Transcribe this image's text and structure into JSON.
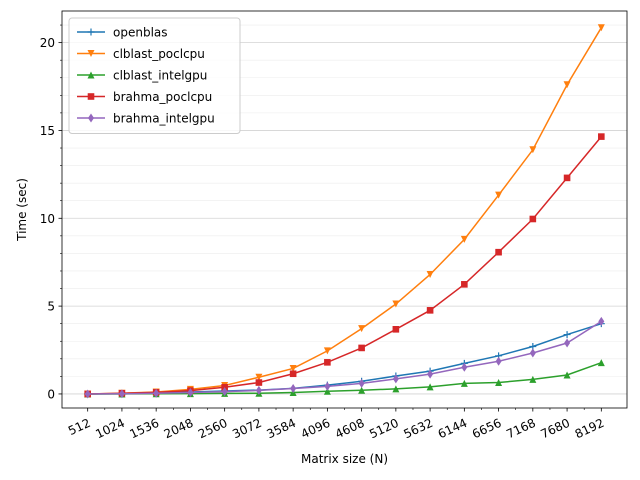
{
  "chart_data": {
    "type": "line",
    "title": "",
    "xlabel": "Matrix size (N)",
    "ylabel": "Time (sec)",
    "x": [
      512,
      1024,
      1536,
      2048,
      2560,
      3072,
      3584,
      4096,
      4608,
      5120,
      5632,
      6144,
      6656,
      7168,
      7680,
      8192
    ],
    "x_tick_labels": [
      "512",
      "1024",
      "1536",
      "2048",
      "2560",
      "3072",
      "3584",
      "4096",
      "4608",
      "5120",
      "5632",
      "6144",
      "6656",
      "7168",
      "7680",
      "8192"
    ],
    "ylim": [
      -0.8,
      21.8
    ],
    "y_ticks": [
      0,
      5,
      10,
      15,
      20
    ],
    "y_tick_labels": [
      "0",
      "5",
      "10",
      "15",
      "20"
    ],
    "y_grid_step": 1,
    "grid": true,
    "legend": "top-left",
    "series": [
      {
        "name": "openblas",
        "color": "#1f77b4",
        "marker": "plus",
        "values": [
          0.0,
          0.02,
          0.05,
          0.11,
          0.17,
          0.22,
          0.32,
          0.5,
          0.72,
          1.02,
          1.3,
          1.74,
          2.17,
          2.7,
          3.38,
          4.0
        ]
      },
      {
        "name": "clblast_poclcpu",
        "color": "#ff7f0e",
        "marker": "triangle-down",
        "values": [
          0.0,
          0.04,
          0.11,
          0.26,
          0.48,
          0.95,
          1.45,
          2.45,
          3.72,
          5.12,
          6.8,
          8.8,
          11.32,
          13.9,
          17.6,
          20.85
        ]
      },
      {
        "name": "clblast_intelgpu",
        "color": "#2ca02c",
        "marker": "triangle-up",
        "values": [
          0.0,
          0.0,
          0.01,
          0.02,
          0.03,
          0.04,
          0.08,
          0.15,
          0.21,
          0.29,
          0.4,
          0.6,
          0.65,
          0.83,
          1.08,
          1.78
        ]
      },
      {
        "name": "brahma_poclcpu",
        "color": "#d62728",
        "marker": "square",
        "values": [
          0.0,
          0.04,
          0.09,
          0.19,
          0.38,
          0.65,
          1.15,
          1.8,
          2.62,
          3.68,
          4.76,
          6.24,
          8.07,
          9.96,
          12.3,
          14.65
        ]
      },
      {
        "name": "brahma_intelgpu",
        "color": "#9467bd",
        "marker": "thin-diamond",
        "values": [
          0.0,
          0.01,
          0.04,
          0.08,
          0.13,
          0.2,
          0.31,
          0.43,
          0.6,
          0.86,
          1.13,
          1.52,
          1.86,
          2.33,
          2.9,
          4.13
        ]
      }
    ]
  }
}
